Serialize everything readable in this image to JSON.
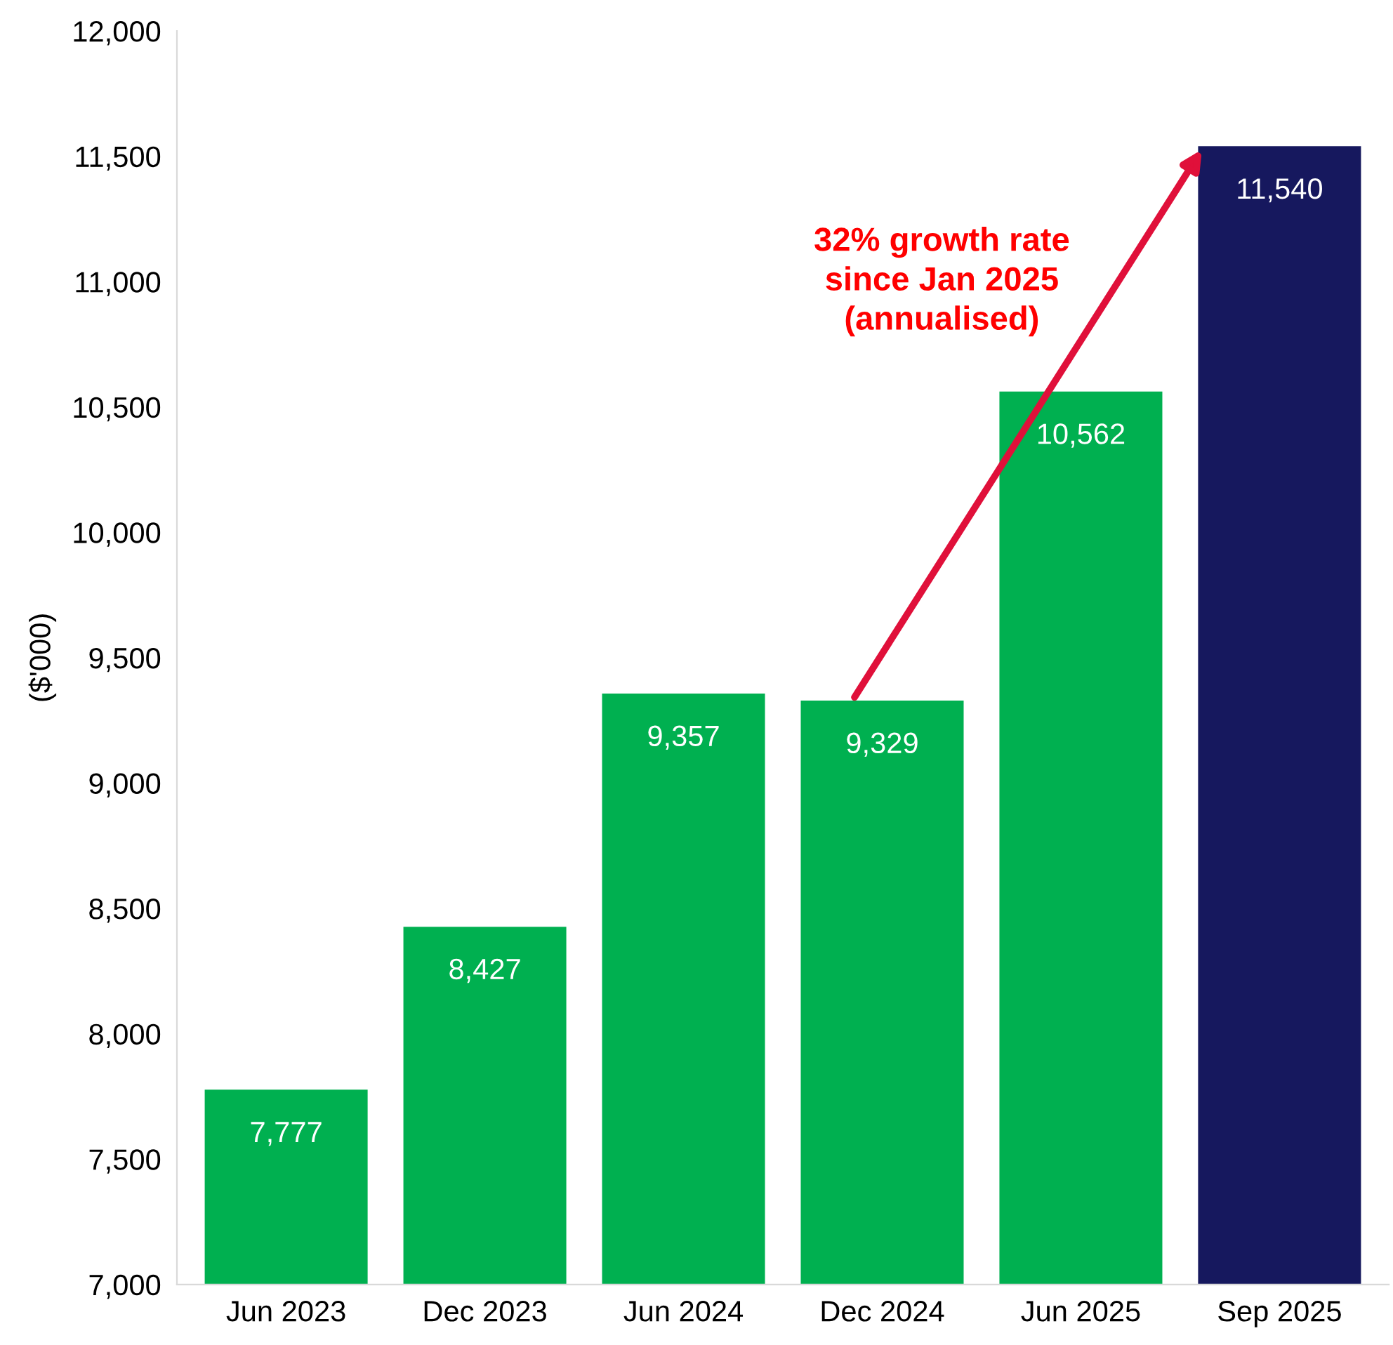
{
  "chart_data": {
    "type": "bar",
    "ylabel": "($'000)",
    "categories": [
      "Jun 2023",
      "Dec 2023",
      "Jun 2024",
      "Dec 2024",
      "Jun 2025",
      "Sep 2025"
    ],
    "values": [
      7777,
      8427,
      9357,
      9329,
      10562,
      11540
    ],
    "colors": [
      "#00b050",
      "#00b050",
      "#00b050",
      "#00b050",
      "#00b050",
      "#16185e"
    ],
    "ylim": [
      7000,
      12000
    ],
    "yticks": [
      {
        "value": 7000,
        "label": "7,000"
      },
      {
        "value": 7500,
        "label": "7,500"
      },
      {
        "value": 8000,
        "label": "8,000"
      },
      {
        "value": 8500,
        "label": "8,500"
      },
      {
        "value": 9000,
        "label": "9,000"
      },
      {
        "value": 9500,
        "label": "9,500"
      },
      {
        "value": 10000,
        "label": "10,000"
      },
      {
        "value": 10500,
        "label": "10,500"
      },
      {
        "value": 11000,
        "label": "11,000"
      },
      {
        "value": 11500,
        "label": "11,500"
      },
      {
        "value": 12000,
        "label": "12,000"
      }
    ],
    "value_labels": [
      "7,777",
      "8,427",
      "9,357",
      "9,329",
      "10,562",
      "11,540"
    ],
    "annotations": [
      "32% growth rate\nsince Jan 2025\n(annualised)"
    ],
    "grid": false,
    "legend": false
  }
}
